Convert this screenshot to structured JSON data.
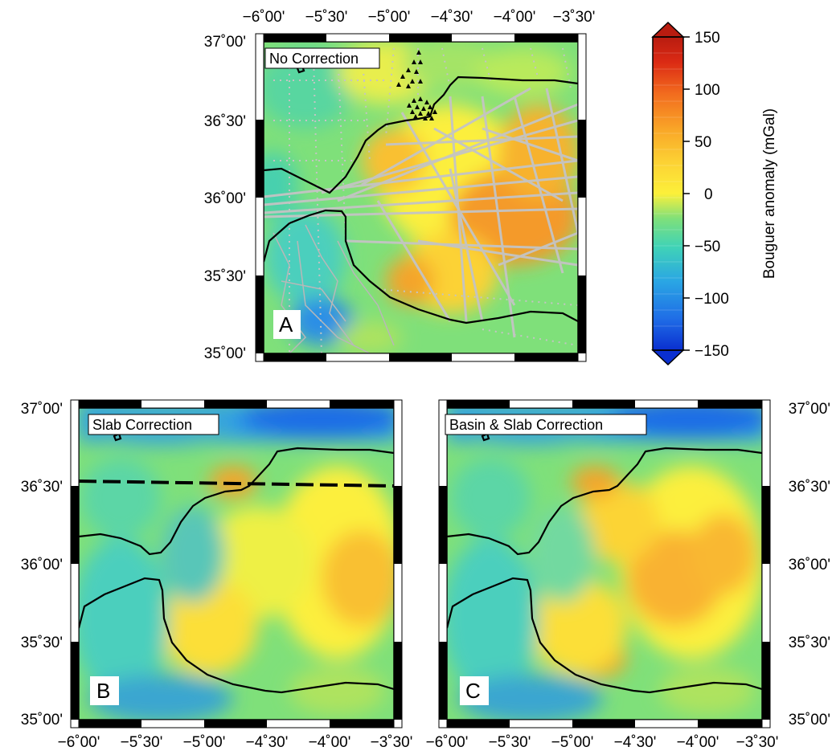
{
  "panels": [
    {
      "id": "A",
      "title": "No Correction",
      "letter": "A"
    },
    {
      "id": "B",
      "title": "Slab Correction",
      "letter": "B"
    },
    {
      "id": "C",
      "title": "Basin & Slab Correction",
      "letter": "C"
    }
  ],
  "axes": {
    "lon_ticks": [
      "−6˚00'",
      "−5˚30'",
      "−5˚00'",
      "−4˚30'",
      "−4˚00'",
      "−3˚30'"
    ],
    "lat_ticks": [
      "37˚00'",
      "36˚30'",
      "36˚00'",
      "35˚30'",
      "35˚00'"
    ],
    "lon_range": [
      -6.0,
      -3.5
    ],
    "lat_range": [
      35.0,
      37.0
    ]
  },
  "colorbar": {
    "label": "Bouguer anomaly (mGal)",
    "ticks": [
      "150",
      "100",
      "50",
      "0",
      "−50",
      "−100",
      "−150"
    ],
    "range": [
      -150,
      150
    ],
    "colors": [
      "#0a2fd0",
      "#1f6de6",
      "#2aa6e4",
      "#40d3b6",
      "#7fe07a",
      "#c9ec52",
      "#fcf03a",
      "#fcd234",
      "#f9a828",
      "#f26b1e",
      "#db2a14",
      "#b81c10"
    ]
  },
  "colors": {
    "coastline": "#000000",
    "tracks": "#c4c4c4",
    "stations": "#000000"
  }
}
